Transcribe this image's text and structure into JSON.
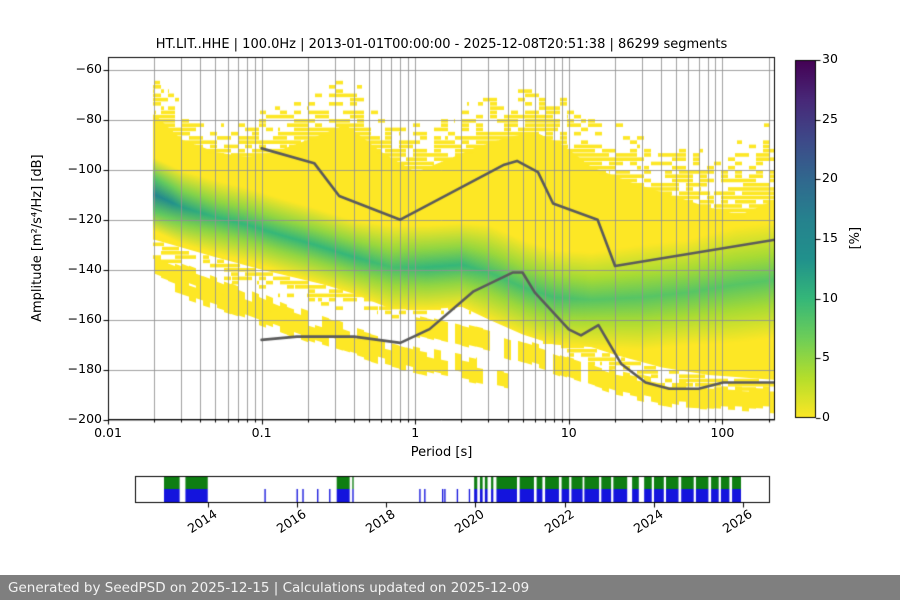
{
  "title": "HT.LIT..HHE | 100.0Hz | 2013-01-01T00:00:00 - 2025-12-08T20:51:38 | 86299 segments",
  "footer": {
    "text": "Generated by SeedPSD on 2025-12-15 | Calculations updated on 2025-12-09",
    "bg": "#7f7f7f"
  },
  "chart_data": {
    "type": "heatmap",
    "title": "HT.LIT..HHE | 100.0Hz | 2013-01-01T00:00:00 - 2025-12-08T20:51:38 | 86299 segments",
    "xlabel": "Period [s]",
    "ylabel": "Amplitude [m²/s⁴/Hz] [dB]",
    "x_scale": "log",
    "xlim": [
      0.01,
      220
    ],
    "ylim": [
      -200,
      -55
    ],
    "xticks": [
      0.01,
      0.1,
      1,
      10,
      100
    ],
    "yticks": [
      -60,
      -80,
      -100,
      -120,
      -140,
      -160,
      -180,
      -200
    ],
    "grid": true,
    "colorbar": {
      "label": "[%]",
      "min": 0,
      "max": 30,
      "ticks": [
        0,
        5,
        10,
        15,
        20,
        25,
        30
      ],
      "colormap": "viridis reversed: 0% = yellow, 30% = dark purple"
    },
    "histogram_colors": {
      "base": "#fde725",
      "viridis_anchors": [
        "#440154",
        "#482878",
        "#3e4989",
        "#31688e",
        "#26828e",
        "#21918c",
        "#35b779",
        "#6ece58",
        "#b5de2b",
        "#fde725"
      ]
    },
    "histogram_summary": {
      "description": "PPSD probability histogram read from plot: mode_band = [period s, center dB, peak %, half-width dB]; envelopes = [period s, dB]",
      "mode_band": [
        [
          0.02,
          -110,
          16,
          7
        ],
        [
          0.03,
          -115,
          12,
          7
        ],
        [
          0.05,
          -119,
          10,
          7
        ],
        [
          0.08,
          -122,
          10,
          7
        ],
        [
          0.13,
          -126,
          10,
          7
        ],
        [
          0.22,
          -130,
          10,
          7
        ],
        [
          0.4,
          -135,
          10,
          7
        ],
        [
          0.7,
          -139,
          9,
          8
        ],
        [
          1.2,
          -139,
          10,
          8
        ],
        [
          2,
          -138,
          10,
          8
        ],
        [
          3,
          -141,
          9,
          9
        ],
        [
          5,
          -147,
          9,
          9
        ],
        [
          8,
          -151,
          9,
          9
        ],
        [
          14,
          -152,
          8,
          9
        ],
        [
          30,
          -151,
          8,
          10
        ],
        [
          60,
          -149,
          8,
          10
        ],
        [
          120,
          -146,
          8,
          11
        ],
        [
          220,
          -144,
          8,
          11
        ]
      ],
      "envelope_max": [
        [
          0.02,
          -62
        ],
        [
          0.025,
          -68
        ],
        [
          0.035,
          -76
        ],
        [
          0.05,
          -82
        ],
        [
          0.07,
          -80
        ],
        [
          0.1,
          -76
        ],
        [
          0.15,
          -72
        ],
        [
          0.25,
          -65
        ],
        [
          0.35,
          -62
        ],
        [
          0.5,
          -68
        ],
        [
          0.7,
          -75
        ],
        [
          1,
          -80
        ],
        [
          1.5,
          -76
        ],
        [
          2.5,
          -70
        ],
        [
          4,
          -66
        ],
        [
          6,
          -63
        ],
        [
          9,
          -68
        ],
        [
          12,
          -74
        ],
        [
          20,
          -80
        ],
        [
          35,
          -86
        ],
        [
          60,
          -90
        ],
        [
          100,
          -94
        ],
        [
          140,
          -84
        ],
        [
          220,
          -80
        ]
      ],
      "envelope_solid_top": [
        [
          0.02,
          -78
        ],
        [
          0.03,
          -88
        ],
        [
          0.05,
          -93
        ],
        [
          0.08,
          -95
        ],
        [
          0.12,
          -93
        ],
        [
          0.2,
          -88
        ],
        [
          0.35,
          -82
        ],
        [
          0.6,
          -93
        ],
        [
          1,
          -101
        ],
        [
          1.6,
          -96
        ],
        [
          2.5,
          -91
        ],
        [
          4,
          -87
        ],
        [
          6,
          -85
        ],
        [
          9,
          -90
        ],
        [
          14,
          -99
        ],
        [
          25,
          -105
        ],
        [
          45,
          -110
        ],
        [
          80,
          -115
        ],
        [
          130,
          -118
        ],
        [
          220,
          -112
        ]
      ],
      "envelope_bottom": [
        [
          0.02,
          -128
        ],
        [
          0.05,
          -135
        ],
        [
          0.1,
          -140
        ],
        [
          0.3,
          -147
        ],
        [
          0.8,
          -152
        ],
        [
          1.5,
          -150
        ],
        [
          2.5,
          -148
        ],
        [
          4,
          -146
        ],
        [
          5,
          -150
        ],
        [
          6,
          -158
        ],
        [
          10,
          -168
        ],
        [
          20,
          -174
        ],
        [
          40,
          -179
        ],
        [
          80,
          -182
        ],
        [
          220,
          -184
        ]
      ],
      "lower_streaks": [
        {
          "top": [
            [
              0.02,
              -134
            ],
            [
              0.06,
              -145
            ],
            [
              0.15,
              -155
            ],
            [
              0.4,
              -164
            ],
            [
              1,
              -171
            ],
            [
              2.5,
              -176
            ]
          ],
          "thickness_db": 7
        },
        {
          "top": [
            [
              0.025,
              -143
            ],
            [
              0.08,
              -153
            ],
            [
              0.2,
              -162
            ],
            [
              0.6,
              -171
            ],
            [
              1.5,
              -177
            ],
            [
              4,
              -182
            ]
          ],
          "thickness_db": 6
        },
        {
          "top": [
            [
              1,
              -158
            ],
            [
              3,
              -165
            ],
            [
              8,
              -173
            ],
            [
              20,
              -181
            ],
            [
              50,
              -186
            ],
            [
              220,
              -188
            ]
          ],
          "thickness_db": 8
        }
      ]
    },
    "noise_models": {
      "color": "#5b5b5b",
      "nhnm": [
        [
          0.1,
          -91.5
        ],
        [
          0.22,
          -97.4
        ],
        [
          0.32,
          -110.5
        ],
        [
          0.8,
          -120
        ],
        [
          3.8,
          -98
        ],
        [
          4.6,
          -96.5
        ],
        [
          6.3,
          -101
        ],
        [
          7.9,
          -113.5
        ],
        [
          15.4,
          -120
        ],
        [
          20,
          -138.5
        ],
        [
          220,
          -128
        ]
      ],
      "nlnm": [
        [
          0.1,
          -168
        ],
        [
          0.17,
          -166.7
        ],
        [
          0.4,
          -166.7
        ],
        [
          0.8,
          -169.2
        ],
        [
          1.24,
          -163.7
        ],
        [
          2.4,
          -148.6
        ],
        [
          4.3,
          -141.1
        ],
        [
          5,
          -141.1
        ],
        [
          6,
          -149
        ],
        [
          10,
          -163.8
        ],
        [
          12,
          -166.2
        ],
        [
          15.6,
          -162.1
        ],
        [
          21.9,
          -177.5
        ],
        [
          31.6,
          -185
        ],
        [
          45,
          -187.5
        ],
        [
          70,
          -187.5
        ],
        [
          101,
          -185
        ],
        [
          154,
          -185
        ],
        [
          220,
          -185
        ]
      ]
    },
    "timeline": {
      "ticks": [
        2014,
        2016,
        2018,
        2020,
        2022,
        2024,
        2026
      ],
      "range": [
        2012.37,
        2026.6
      ],
      "colors": {
        "top_row": "#0e7e12",
        "bottom_row": "#1414dd"
      },
      "segments": [
        [
          2013.02,
          2013.37,
          "bg"
        ],
        [
          2013.5,
          2014.0,
          "bg"
        ],
        [
          2015.27,
          2015.3,
          "b"
        ],
        [
          2015.99,
          2016.02,
          "b"
        ],
        [
          2016.12,
          2016.15,
          "b"
        ],
        [
          2016.45,
          2016.48,
          "b"
        ],
        [
          2016.72,
          2016.75,
          "b"
        ],
        [
          2016.89,
          2017.18,
          "bg"
        ],
        [
          2017.24,
          2017.27,
          "bg"
        ],
        [
          2018.74,
          2018.77,
          "b"
        ],
        [
          2018.85,
          2018.88,
          "b"
        ],
        [
          2019.25,
          2019.28,
          "b"
        ],
        [
          2019.3,
          2019.33,
          "b"
        ],
        [
          2019.58,
          2019.61,
          "b"
        ],
        [
          2019.85,
          2019.88,
          "b"
        ],
        [
          2019.97,
          2020.04,
          "bg"
        ],
        [
          2020.1,
          2020.16,
          "bg"
        ],
        [
          2020.21,
          2020.27,
          "bg"
        ],
        [
          2020.35,
          2020.4,
          "bg"
        ],
        [
          2020.47,
          2020.93,
          "bg"
        ],
        [
          2020.99,
          2021.31,
          "bg"
        ],
        [
          2021.37,
          2021.5,
          "bg"
        ],
        [
          2021.56,
          2021.87,
          "bg"
        ],
        [
          2021.93,
          2022.1,
          "bg"
        ],
        [
          2022.15,
          2022.4,
          "bg"
        ],
        [
          2022.44,
          2022.77,
          "bg"
        ],
        [
          2022.82,
          2023.04,
          "bg"
        ],
        [
          2023.09,
          2023.4,
          "bg"
        ],
        [
          2023.51,
          2023.66,
          "bg"
        ],
        [
          2023.78,
          2023.95,
          "bg"
        ],
        [
          2024.0,
          2024.22,
          "bg"
        ],
        [
          2024.27,
          2024.55,
          "bg"
        ],
        [
          2024.61,
          2024.89,
          "bg"
        ],
        [
          2024.94,
          2025.22,
          "bg"
        ],
        [
          2025.28,
          2025.45,
          "bg"
        ],
        [
          2025.5,
          2025.69,
          "bg"
        ],
        [
          2025.75,
          2025.95,
          "bg"
        ]
      ]
    }
  }
}
